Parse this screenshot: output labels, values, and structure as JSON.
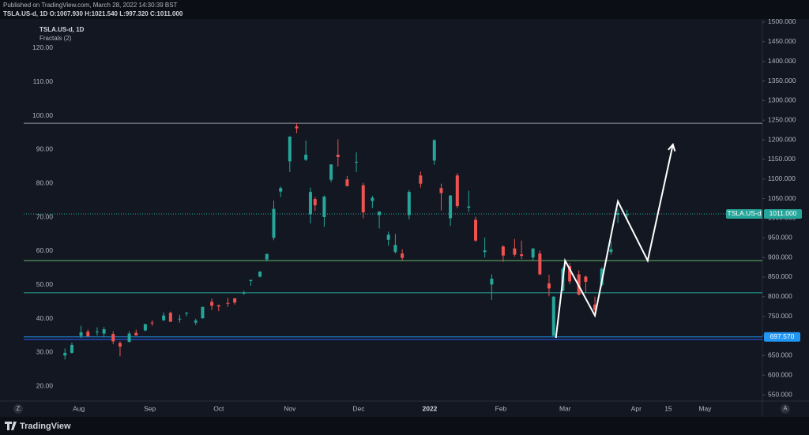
{
  "header": {
    "published": "Published on TradingView.com, March 28, 2022 14:30:39 BST",
    "symbol": "TSLA.US-d, 1D",
    "ohlc": [
      {
        "name": "O:",
        "value": "1007.930"
      },
      {
        "name": "H:",
        "value": "1021.540"
      },
      {
        "name": "L:",
        "value": "997.320"
      },
      {
        "name": "C:",
        "value": "1011.000"
      }
    ]
  },
  "footer": {
    "brand": "TradingView",
    "left_button": "Z",
    "right_button": "A"
  },
  "chart_data": {
    "type": "candlestick",
    "symbol": "TSLA.US-d",
    "legend": "TSLA.US-d, 1D",
    "indicator": "Fractals (2)",
    "up_color": "#26a69a",
    "down_color": "#ef5350",
    "x": [
      "2021-07-26",
      "2021-07-29",
      "2021-08-02",
      "2021-08-05",
      "2021-08-09",
      "2021-08-12",
      "2021-08-16",
      "2021-08-19",
      "2021-08-23",
      "2021-08-26",
      "2021-08-30",
      "2021-09-02",
      "2021-09-07",
      "2021-09-10",
      "2021-09-14",
      "2021-09-17",
      "2021-09-21",
      "2021-09-24",
      "2021-09-28",
      "2021-10-01",
      "2021-10-05",
      "2021-10-08",
      "2021-10-12",
      "2021-10-15",
      "2021-10-19",
      "2021-10-22",
      "2021-10-25",
      "2021-10-28",
      "2021-11-01",
      "2021-11-04",
      "2021-11-08",
      "2021-11-10",
      "2021-11-12",
      "2021-11-16",
      "2021-11-19",
      "2021-11-22",
      "2021-11-26",
      "2021-11-30",
      "2021-12-03",
      "2021-12-07",
      "2021-12-10",
      "2021-12-14",
      "2021-12-17",
      "2021-12-20",
      "2021-12-23",
      "2021-12-28",
      "2022-01-03",
      "2022-01-06",
      "2022-01-10",
      "2022-01-13",
      "2022-01-18",
      "2022-01-21",
      "2022-01-25",
      "2022-01-28",
      "2022-02-02",
      "2022-02-07",
      "2022-02-10",
      "2022-02-15",
      "2022-02-18",
      "2022-02-22",
      "2022-02-24",
      "2022-02-28",
      "2022-03-03",
      "2022-03-07",
      "2022-03-10",
      "2022-03-14",
      "2022-03-17",
      "2022-03-21",
      "2022-03-24",
      "2022-03-28"
    ],
    "open": [
      650,
      657,
      700,
      711,
      710,
      706,
      705,
      682,
      685,
      708,
      714,
      734,
      740,
      759,
      742,
      757,
      734,
      745,
      787,
      778,
      784,
      796,
      808,
      840,
      851,
      895,
      950,
      1068,
      1145,
      1234,
      1149,
      1010,
      1049,
      1003,
      1098,
      1162,
      1099,
      1144,
      1084,
      1044,
      1008,
      945,
      914,
      910,
      1008,
      1109,
      1147,
      1077,
      1000,
      1109,
      1027,
      996,
      914,
      831,
      928,
      923,
      908,
      900,
      910,
      834,
      700,
      815,
      878,
      857,
      851,
      780,
      830,
      914,
      1009,
      1007.93
    ],
    "high": [
      668,
      683,
      726,
      716,
      722,
      723,
      712,
      686,
      712,
      716,
      731,
      740,
      760,
      762,
      754,
      761,
      744,
      774,
      795,
      780,
      797,
      796,
      815,
      843,
      865,
      910,
      1045,
      1081,
      1209,
      1243,
      1198,
      1078,
      1054,
      1058,
      1138,
      1201,
      1108,
      1168,
      1090,
      1057,
      1018,
      966,
      960,
      921,
      1072,
      1119,
      1201,
      1088,
      1059,
      1115,
      1070,
      1004,
      951,
      857,
      931,
      947,
      943,
      923,
      918,
      856,
      802,
      876,
      886,
      867,
      854,
      800,
      875,
      942,
      1024,
      1021.54
    ],
    "low": [
      640,
      655,
      695,
      699,
      701,
      697,
      679,
      648,
      683,
      701,
      712,
      726,
      738,
      736,
      734,
      750,
      728,
      744,
      766,
      763,
      774,
      780,
      805,
      828,
      849,
      890,
      944,
      1054,
      1118,
      1217,
      1146,
      987,
      1019,
      978,
      1092,
      1132,
      1081,
      1118,
      1000,
      1026,
      974,
      930,
      910,
      893,
      997,
      1078,
      1136,
      1020,
      980,
      1026,
      1016,
      940,
      900,
      792,
      889,
      902,
      896,
      893,
      855,
      801,
      700,
      814,
      832,
      804,
      810,
      756,
      825,
      907,
      988,
      997.32
    ],
    "close": [
      657,
      677,
      709,
      699,
      711,
      717,
      686,
      673,
      706,
      701,
      730,
      732,
      752,
      736,
      744,
      759,
      739,
      774,
      777,
      775,
      782,
      785,
      811,
      843,
      864,
      909,
      1024,
      1077,
      1208,
      1229,
      1162,
      1067,
      1033,
      1055,
      1137,
      1156,
      1082,
      1144,
      1015,
      1052,
      1017,
      958,
      932,
      899,
      1067,
      1088,
      1199,
      1064,
      1058,
      1031,
      1030,
      943,
      918,
      846,
      905,
      907,
      904,
      923,
      857,
      821,
      800,
      871,
      839,
      805,
      838,
      766,
      871,
      921,
      1013,
      1011
    ],
    "xlim": [
      "2021-07-08",
      "2022-05-26"
    ],
    "xticks": [
      {
        "value": "2021-08-01",
        "label": "Aug"
      },
      {
        "value": "2021-09-01",
        "label": "Sep"
      },
      {
        "value": "2021-10-01",
        "label": "Oct"
      },
      {
        "value": "2021-11-01",
        "label": "Nov"
      },
      {
        "value": "2021-12-01",
        "label": "Dec"
      },
      {
        "value": "2022-01-01",
        "label": "2022"
      },
      {
        "value": "2022-02-01",
        "label": "Feb"
      },
      {
        "value": "2022-03-01",
        "label": "Mar"
      },
      {
        "value": "2022-04-01",
        "label": "Apr"
      },
      {
        "value": "2022-04-15",
        "label": "15"
      },
      {
        "value": "2022-05-01",
        "label": "May"
      }
    ],
    "ylim": [
      534,
      1506
    ],
    "yticks": [
      {
        "value": 550,
        "label": "550.000"
      },
      {
        "value": 600,
        "label": "600.000"
      },
      {
        "value": 650,
        "label": "650.000"
      },
      {
        "value": 700,
        "label": "700.000"
      },
      {
        "value": 750,
        "label": "750.000"
      },
      {
        "value": 800,
        "label": "800.000"
      },
      {
        "value": 850,
        "label": "850.000"
      },
      {
        "value": 900,
        "label": "900.000"
      },
      {
        "value": 950,
        "label": "950.000"
      },
      {
        "value": 1000,
        "label": "1000.000"
      },
      {
        "value": 1050,
        "label": "1050.000"
      },
      {
        "value": 1100,
        "label": "1100.000"
      },
      {
        "value": 1150,
        "label": "1150.000"
      },
      {
        "value": 1200,
        "label": "1200.000"
      },
      {
        "value": 1250,
        "label": "1250.000"
      },
      {
        "value": 1300,
        "label": "1300.000"
      },
      {
        "value": 1350,
        "label": "1350.000"
      },
      {
        "value": 1400,
        "label": "1400.000"
      },
      {
        "value": 1450,
        "label": "1450.000"
      },
      {
        "value": 1500,
        "label": "1500.000"
      }
    ],
    "y2lim": [
      15.6,
      128.4
    ],
    "y2ticks": [
      {
        "value": 20,
        "label": "20.00"
      },
      {
        "value": 30,
        "label": "30.00"
      },
      {
        "value": 40,
        "label": "40.00"
      },
      {
        "value": 50,
        "label": "50.00"
      },
      {
        "value": 60,
        "label": "60.00"
      },
      {
        "value": 70,
        "label": "70.00"
      },
      {
        "value": 80,
        "label": "80.00"
      },
      {
        "value": 90,
        "label": "90.00"
      },
      {
        "value": 100,
        "label": "100.00"
      },
      {
        "value": 110,
        "label": "110.00"
      },
      {
        "value": 120,
        "label": "120.00"
      }
    ],
    "last_price": {
      "value": 1011,
      "label": "1011.000",
      "color": "#26a69a"
    },
    "levels": [
      {
        "value": 1242,
        "color": "#9598a1"
      },
      {
        "value": 892,
        "color": "#66bb6a"
      },
      {
        "value": 810,
        "color": "#26a69a"
      },
      {
        "value": 697.57,
        "label": "697.570",
        "color": "#2196f3"
      },
      {
        "value": 691,
        "color": "#2962ff"
      }
    ],
    "projection": {
      "color": "#ffffff",
      "x": [
        "2022-02-25",
        "2022-03-01",
        "2022-03-14",
        "2022-03-24",
        "2022-04-06",
        "2022-04-17"
      ],
      "values": [
        695,
        892,
        752,
        1043,
        892,
        1188
      ]
    }
  }
}
